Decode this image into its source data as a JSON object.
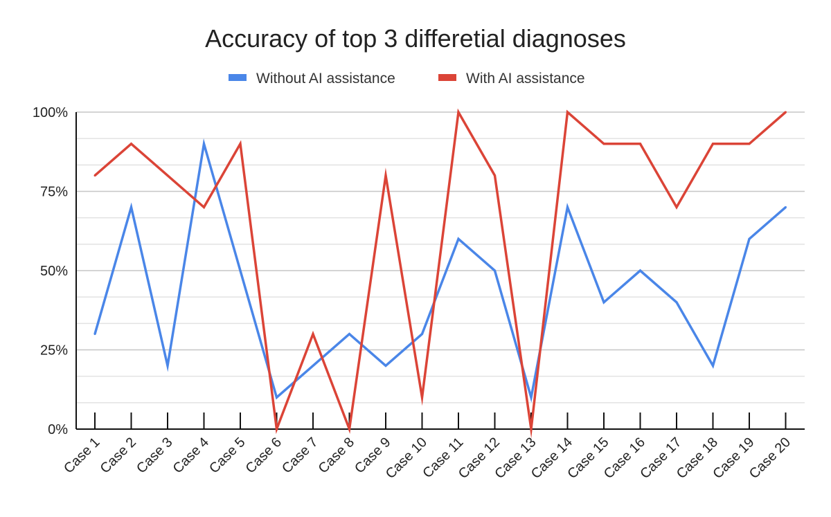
{
  "chart_data": {
    "type": "line",
    "title": "Accuracy of top 3 differetial diagnoses",
    "xlabel": "",
    "ylabel": "",
    "ylim": [
      0,
      100
    ],
    "y_ticks": [
      {
        "value": 0,
        "label": "0%"
      },
      {
        "value": 25,
        "label": "25%"
      },
      {
        "value": 50,
        "label": "50%"
      },
      {
        "value": 75,
        "label": "75%"
      },
      {
        "value": 100,
        "label": "100%"
      }
    ],
    "minor_gridlines_every": 8.333,
    "legend_position": "top-center",
    "categories": [
      "Case 1",
      "Case 2",
      "Case 3",
      "Case 4",
      "Case 5",
      "Case 6",
      "Case 7",
      "Case 8",
      "Case 9",
      "Case 10",
      "Case 11",
      "Case 12",
      "Case 13",
      "Case 14",
      "Case 15",
      "Case 16",
      "Case 17",
      "Case 18",
      "Case 19",
      "Case 20"
    ],
    "series": [
      {
        "name": "Without AI assistance",
        "color": "#4a86e8",
        "values": [
          30,
          70,
          20,
          90,
          50,
          10,
          20,
          30,
          20,
          30,
          60,
          50,
          10,
          70,
          40,
          50,
          40,
          20,
          60,
          70
        ]
      },
      {
        "name": "With AI assistance",
        "color": "#db4437",
        "values": [
          80,
          90,
          80,
          70,
          90,
          0,
          30,
          0,
          80,
          10,
          100,
          80,
          0,
          100,
          90,
          90,
          70,
          90,
          90,
          100
        ]
      }
    ]
  }
}
